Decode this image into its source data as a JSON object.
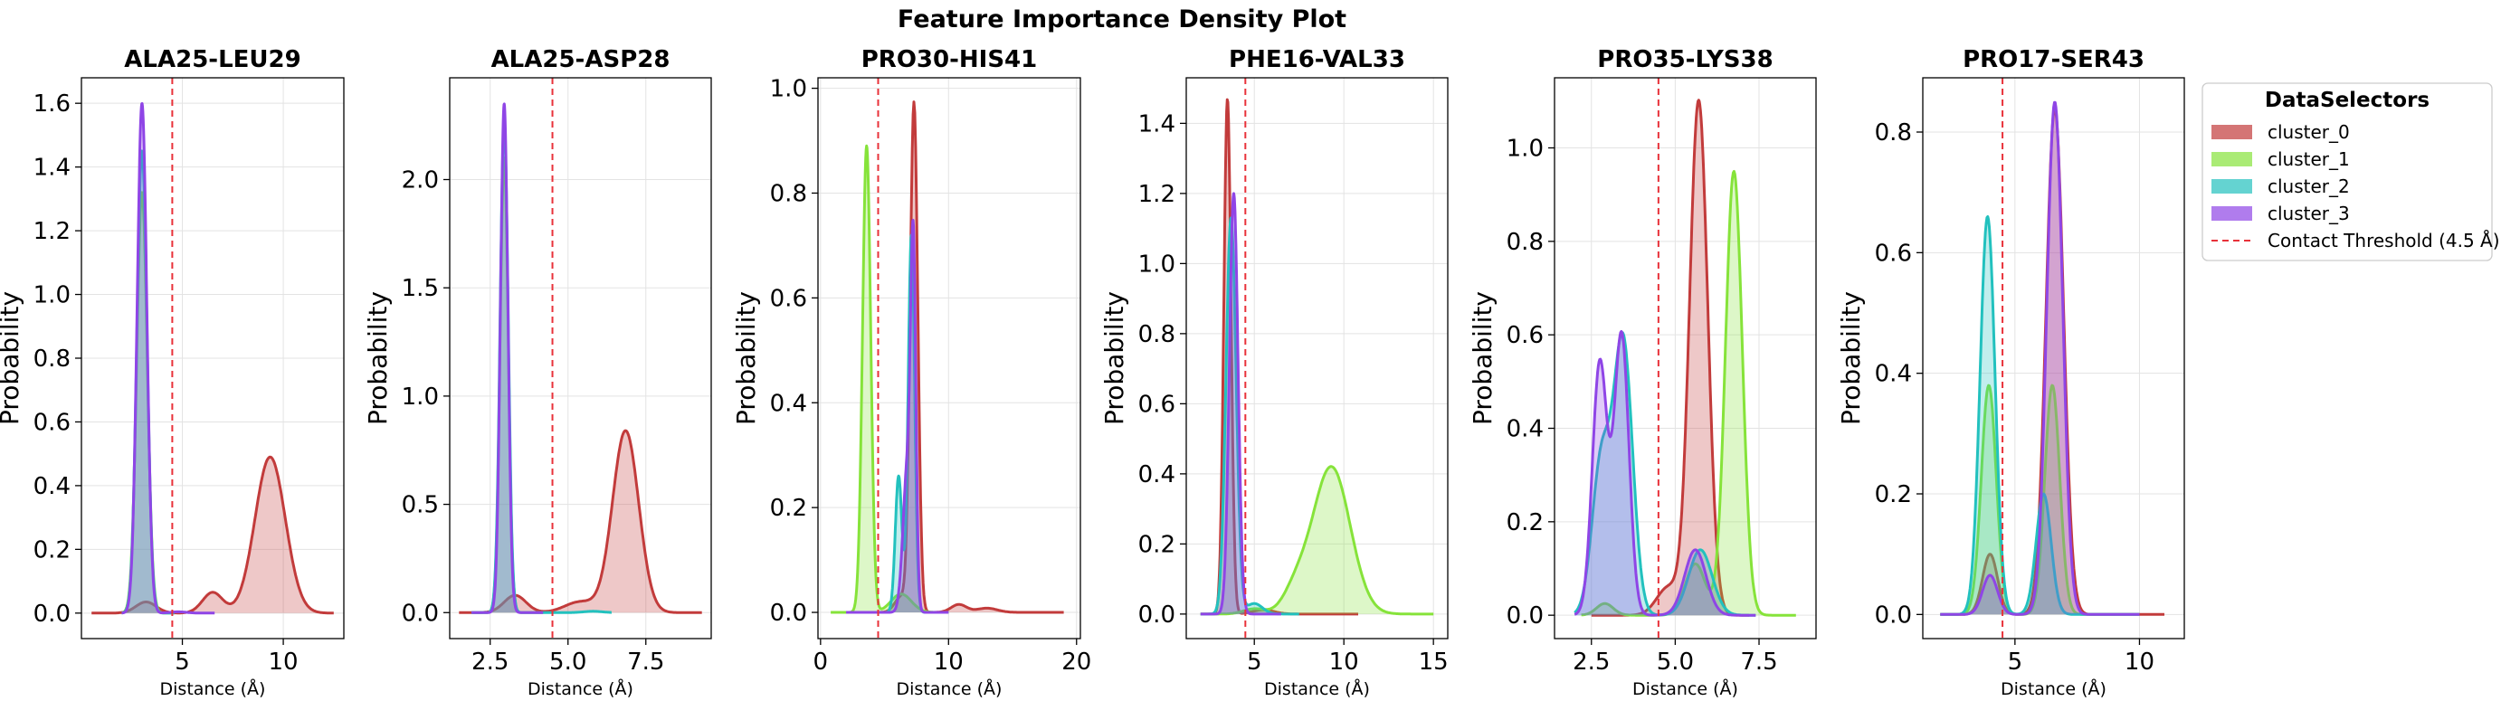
{
  "chart_data": {
    "type": "area",
    "title": "Feature Importance Density Plot",
    "legend": {
      "title": "DataSelectors",
      "placement": "right",
      "entries": [
        "cluster_0",
        "cluster_1",
        "cluster_2",
        "cluster_3",
        "Contact Threshold (4.5 Å)"
      ]
    },
    "threshold": {
      "name": "Contact Threshold (4.5 Å)",
      "value": 4.5,
      "color": "#e8323a"
    },
    "series_colors": {
      "cluster_0": "#c23b3b",
      "cluster_1": "#86e33a",
      "cluster_2": "#22c1be",
      "cluster_3": "#8f45e6"
    },
    "grid": true,
    "panels": [
      {
        "title": "ALA25-LEU29",
        "xlabel": "Distance (Å)",
        "ylabel": "Probability",
        "xlim": [
          0,
          13
        ],
        "ylim": [
          -0.08,
          1.68
        ],
        "xticks": [
          5,
          10
        ],
        "xtick_labels": [
          "5",
          "10"
        ],
        "yticks": [
          0,
          0.2,
          0.4,
          0.6,
          0.8,
          1.0,
          1.2,
          1.4,
          1.6
        ],
        "ytick_labels": [
          "0.0",
          "0.2",
          "0.4",
          "0.6",
          "0.8",
          "1.0",
          "1.2",
          "1.4",
          "1.6"
        ],
        "series": [
          {
            "cluster": "cluster_0",
            "range": [
              0.5,
              12.5
            ],
            "peaks": [
              [
                3.2,
                0.035,
                0.5
              ],
              [
                6.5,
                0.065,
                0.5
              ],
              [
                9.35,
                0.49,
                0.75
              ]
            ]
          },
          {
            "cluster": "cluster_1",
            "range": [
              2.0,
              4.6
            ],
            "peaks": [
              [
                3.0,
                1.32,
                0.26
              ]
            ]
          },
          {
            "cluster": "cluster_2",
            "range": [
              2.0,
              4.6
            ],
            "peaks": [
              [
                3.0,
                1.45,
                0.25
              ]
            ]
          },
          {
            "cluster": "cluster_3",
            "range": [
              2.0,
              6.6
            ],
            "peaks": [
              [
                3.0,
                1.6,
                0.24
              ],
              [
                4.8,
                0.004,
                0.4
              ]
            ]
          }
        ]
      },
      {
        "title": "ALA25-ASP28",
        "xlabel": "Distance (Å)",
        "ylabel": "Probability",
        "xlim": [
          1.2,
          9.6
        ],
        "ylim": [
          -0.12,
          2.47
        ],
        "xticks": [
          2.5,
          5.0,
          7.5
        ],
        "xtick_labels": [
          "2.5",
          "5.0",
          "7.5"
        ],
        "yticks": [
          0,
          0.5,
          1.0,
          1.5,
          2.0
        ],
        "ytick_labels": [
          "0.0",
          "0.5",
          "1.0",
          "1.5",
          "2.0"
        ],
        "series": [
          {
            "cluster": "cluster_0",
            "range": [
              1.5,
              9.3
            ],
            "peaks": [
              [
                3.3,
                0.08,
                0.35
              ],
              [
                5.4,
                0.05,
                0.5
              ],
              [
                6.85,
                0.84,
                0.42
              ]
            ]
          },
          {
            "cluster": "cluster_1",
            "range": [
              1.9,
              4.2
            ],
            "peaks": [
              [
                2.95,
                2.1,
                0.13
              ]
            ]
          },
          {
            "cluster": "cluster_2",
            "range": [
              1.9,
              6.4
            ],
            "peaks": [
              [
                2.95,
                2.25,
                0.13
              ],
              [
                5.8,
                0.006,
                0.3
              ]
            ]
          },
          {
            "cluster": "cluster_3",
            "range": [
              1.9,
              4.2
            ],
            "peaks": [
              [
                2.95,
                2.35,
                0.12
              ]
            ]
          }
        ]
      },
      {
        "title": "PRO30-HIS41",
        "xlabel": "Distance (Å)",
        "ylabel": "Probability",
        "xlim": [
          -0.2,
          20.3
        ],
        "ylim": [
          -0.05,
          1.02
        ],
        "xticks": [
          0,
          10,
          20
        ],
        "xtick_labels": [
          "0",
          "10",
          "20"
        ],
        "yticks": [
          0,
          0.2,
          0.4,
          0.6,
          0.8,
          1.0
        ],
        "ytick_labels": [
          "0.0",
          "0.2",
          "0.4",
          "0.6",
          "0.8",
          "1.0"
        ],
        "series": [
          {
            "cluster": "cluster_0",
            "range": [
              2.0,
              19.0
            ],
            "peaks": [
              [
                7.3,
                0.97,
                0.3
              ],
              [
                6.3,
                0.03,
                0.5
              ],
              [
                10.8,
                0.015,
                0.6
              ],
              [
                13.0,
                0.008,
                0.8
              ]
            ]
          },
          {
            "cluster": "cluster_1",
            "range": [
              0.8,
              10.0
            ],
            "peaks": [
              [
                3.6,
                0.89,
                0.32
              ],
              [
                6.3,
                0.035,
                0.8
              ]
            ]
          },
          {
            "cluster": "cluster_2",
            "range": [
              4.0,
              10.0
            ],
            "peaks": [
              [
                6.1,
                0.26,
                0.26
              ],
              [
                7.1,
                0.72,
                0.25
              ]
            ]
          },
          {
            "cluster": "cluster_3",
            "range": [
              2.0,
              10.0
            ],
            "peaks": [
              [
                6.8,
                0.28,
                0.35
              ],
              [
                7.25,
                0.62,
                0.2
              ]
            ]
          }
        ]
      },
      {
        "title": "PHE16-VAL33",
        "xlabel": "Distance (Å)",
        "ylabel": "Probability",
        "xlim": [
          1.2,
          15.8
        ],
        "ylim": [
          -0.07,
          1.53
        ],
        "xticks": [
          5,
          10,
          15
        ],
        "xtick_labels": [
          "5",
          "10",
          "15"
        ],
        "yticks": [
          0,
          0.2,
          0.4,
          0.6,
          0.8,
          1.0,
          1.2,
          1.4
        ],
        "ytick_labels": [
          "0.0",
          "0.2",
          "0.4",
          "0.6",
          "0.8",
          "1.0",
          "1.2",
          "1.4"
        ],
        "series": [
          {
            "cluster": "cluster_0",
            "range": [
              2.0,
              10.8
            ],
            "peaks": [
              [
                3.5,
                1.47,
                0.2
              ],
              [
                5.5,
                0.012,
                0.6
              ]
            ]
          },
          {
            "cluster": "cluster_1",
            "range": [
              2.0,
              15.0
            ],
            "peaks": [
              [
                9.3,
                0.42,
                1.05
              ],
              [
                7.3,
                0.06,
                0.7
              ],
              [
                5.0,
                0.015,
                0.6
              ]
            ]
          },
          {
            "cluster": "cluster_2",
            "range": [
              2.0,
              7.5
            ],
            "peaks": [
              [
                3.7,
                1.13,
                0.28
              ],
              [
                5.0,
                0.03,
                0.45
              ]
            ]
          },
          {
            "cluster": "cluster_3",
            "range": [
              2.0,
              6.5
            ],
            "peaks": [
              [
                3.85,
                1.2,
                0.24
              ]
            ]
          }
        ]
      },
      {
        "title": "PRO35-LYS38",
        "xlabel": "Distance (Å)",
        "ylabel": "Probability",
        "xlim": [
          1.4,
          9.2
        ],
        "ylim": [
          -0.05,
          1.15
        ],
        "xticks": [
          2.5,
          5.0,
          7.5
        ],
        "xtick_labels": [
          "2.5",
          "5.0",
          "7.5"
        ],
        "yticks": [
          0,
          0.2,
          0.4,
          0.6,
          0.8,
          1.0
        ],
        "ytick_labels": [
          "0.0",
          "0.2",
          "0.4",
          "0.6",
          "0.8",
          "1.0"
        ],
        "series": [
          {
            "cluster": "cluster_0",
            "range": [
              2.5,
              7.2
            ],
            "peaks": [
              [
                5.7,
                1.1,
                0.27
              ],
              [
                4.8,
                0.06,
                0.35
              ]
            ]
          },
          {
            "cluster": "cluster_1",
            "range": [
              2.2,
              8.6
            ],
            "peaks": [
              [
                6.75,
                0.95,
                0.25
              ],
              [
                5.6,
                0.11,
                0.3
              ],
              [
                2.9,
                0.025,
                0.25
              ]
            ]
          },
          {
            "cluster": "cluster_2",
            "range": [
              2.0,
              7.4
            ],
            "peaks": [
              [
                2.8,
                0.33,
                0.28
              ],
              [
                3.45,
                0.58,
                0.28
              ],
              [
                5.75,
                0.14,
                0.35
              ]
            ]
          },
          {
            "cluster": "cluster_3",
            "range": [
              2.0,
              7.4
            ],
            "peaks": [
              [
                2.75,
                0.54,
                0.22
              ],
              [
                3.4,
                0.6,
                0.22
              ],
              [
                5.6,
                0.14,
                0.32
              ]
            ]
          }
        ]
      },
      {
        "title": "PRO17-SER43",
        "xlabel": "Distance (Å)",
        "ylabel": "Probability",
        "xlim": [
          1.3,
          11.8
        ],
        "ylim": [
          -0.04,
          0.89
        ],
        "xticks": [
          5,
          10
        ],
        "xtick_labels": [
          "5",
          "10"
        ],
        "yticks": [
          0,
          0.2,
          0.4,
          0.6,
          0.8
        ],
        "ytick_labels": [
          "0.0",
          "0.2",
          "0.4",
          "0.6",
          "0.8"
        ],
        "series": [
          {
            "cluster": "cluster_0",
            "range": [
              2.0,
              11.0
            ],
            "peaks": [
              [
                4.0,
                0.1,
                0.3
              ],
              [
                6.6,
                0.84,
                0.35
              ]
            ]
          },
          {
            "cluster": "cluster_1",
            "range": [
              2.0,
              10.0
            ],
            "peaks": [
              [
                3.95,
                0.38,
                0.3
              ],
              [
                6.5,
                0.38,
                0.3
              ]
            ]
          },
          {
            "cluster": "cluster_2",
            "range": [
              2.0,
              10.0
            ],
            "peaks": [
              [
                3.9,
                0.66,
                0.3
              ],
              [
                6.15,
                0.2,
                0.3
              ]
            ]
          },
          {
            "cluster": "cluster_3",
            "range": [
              2.0,
              10.0
            ],
            "peaks": [
              [
                4.0,
                0.065,
                0.3
              ],
              [
                6.6,
                0.85,
                0.32
              ]
            ]
          }
        ]
      }
    ]
  }
}
